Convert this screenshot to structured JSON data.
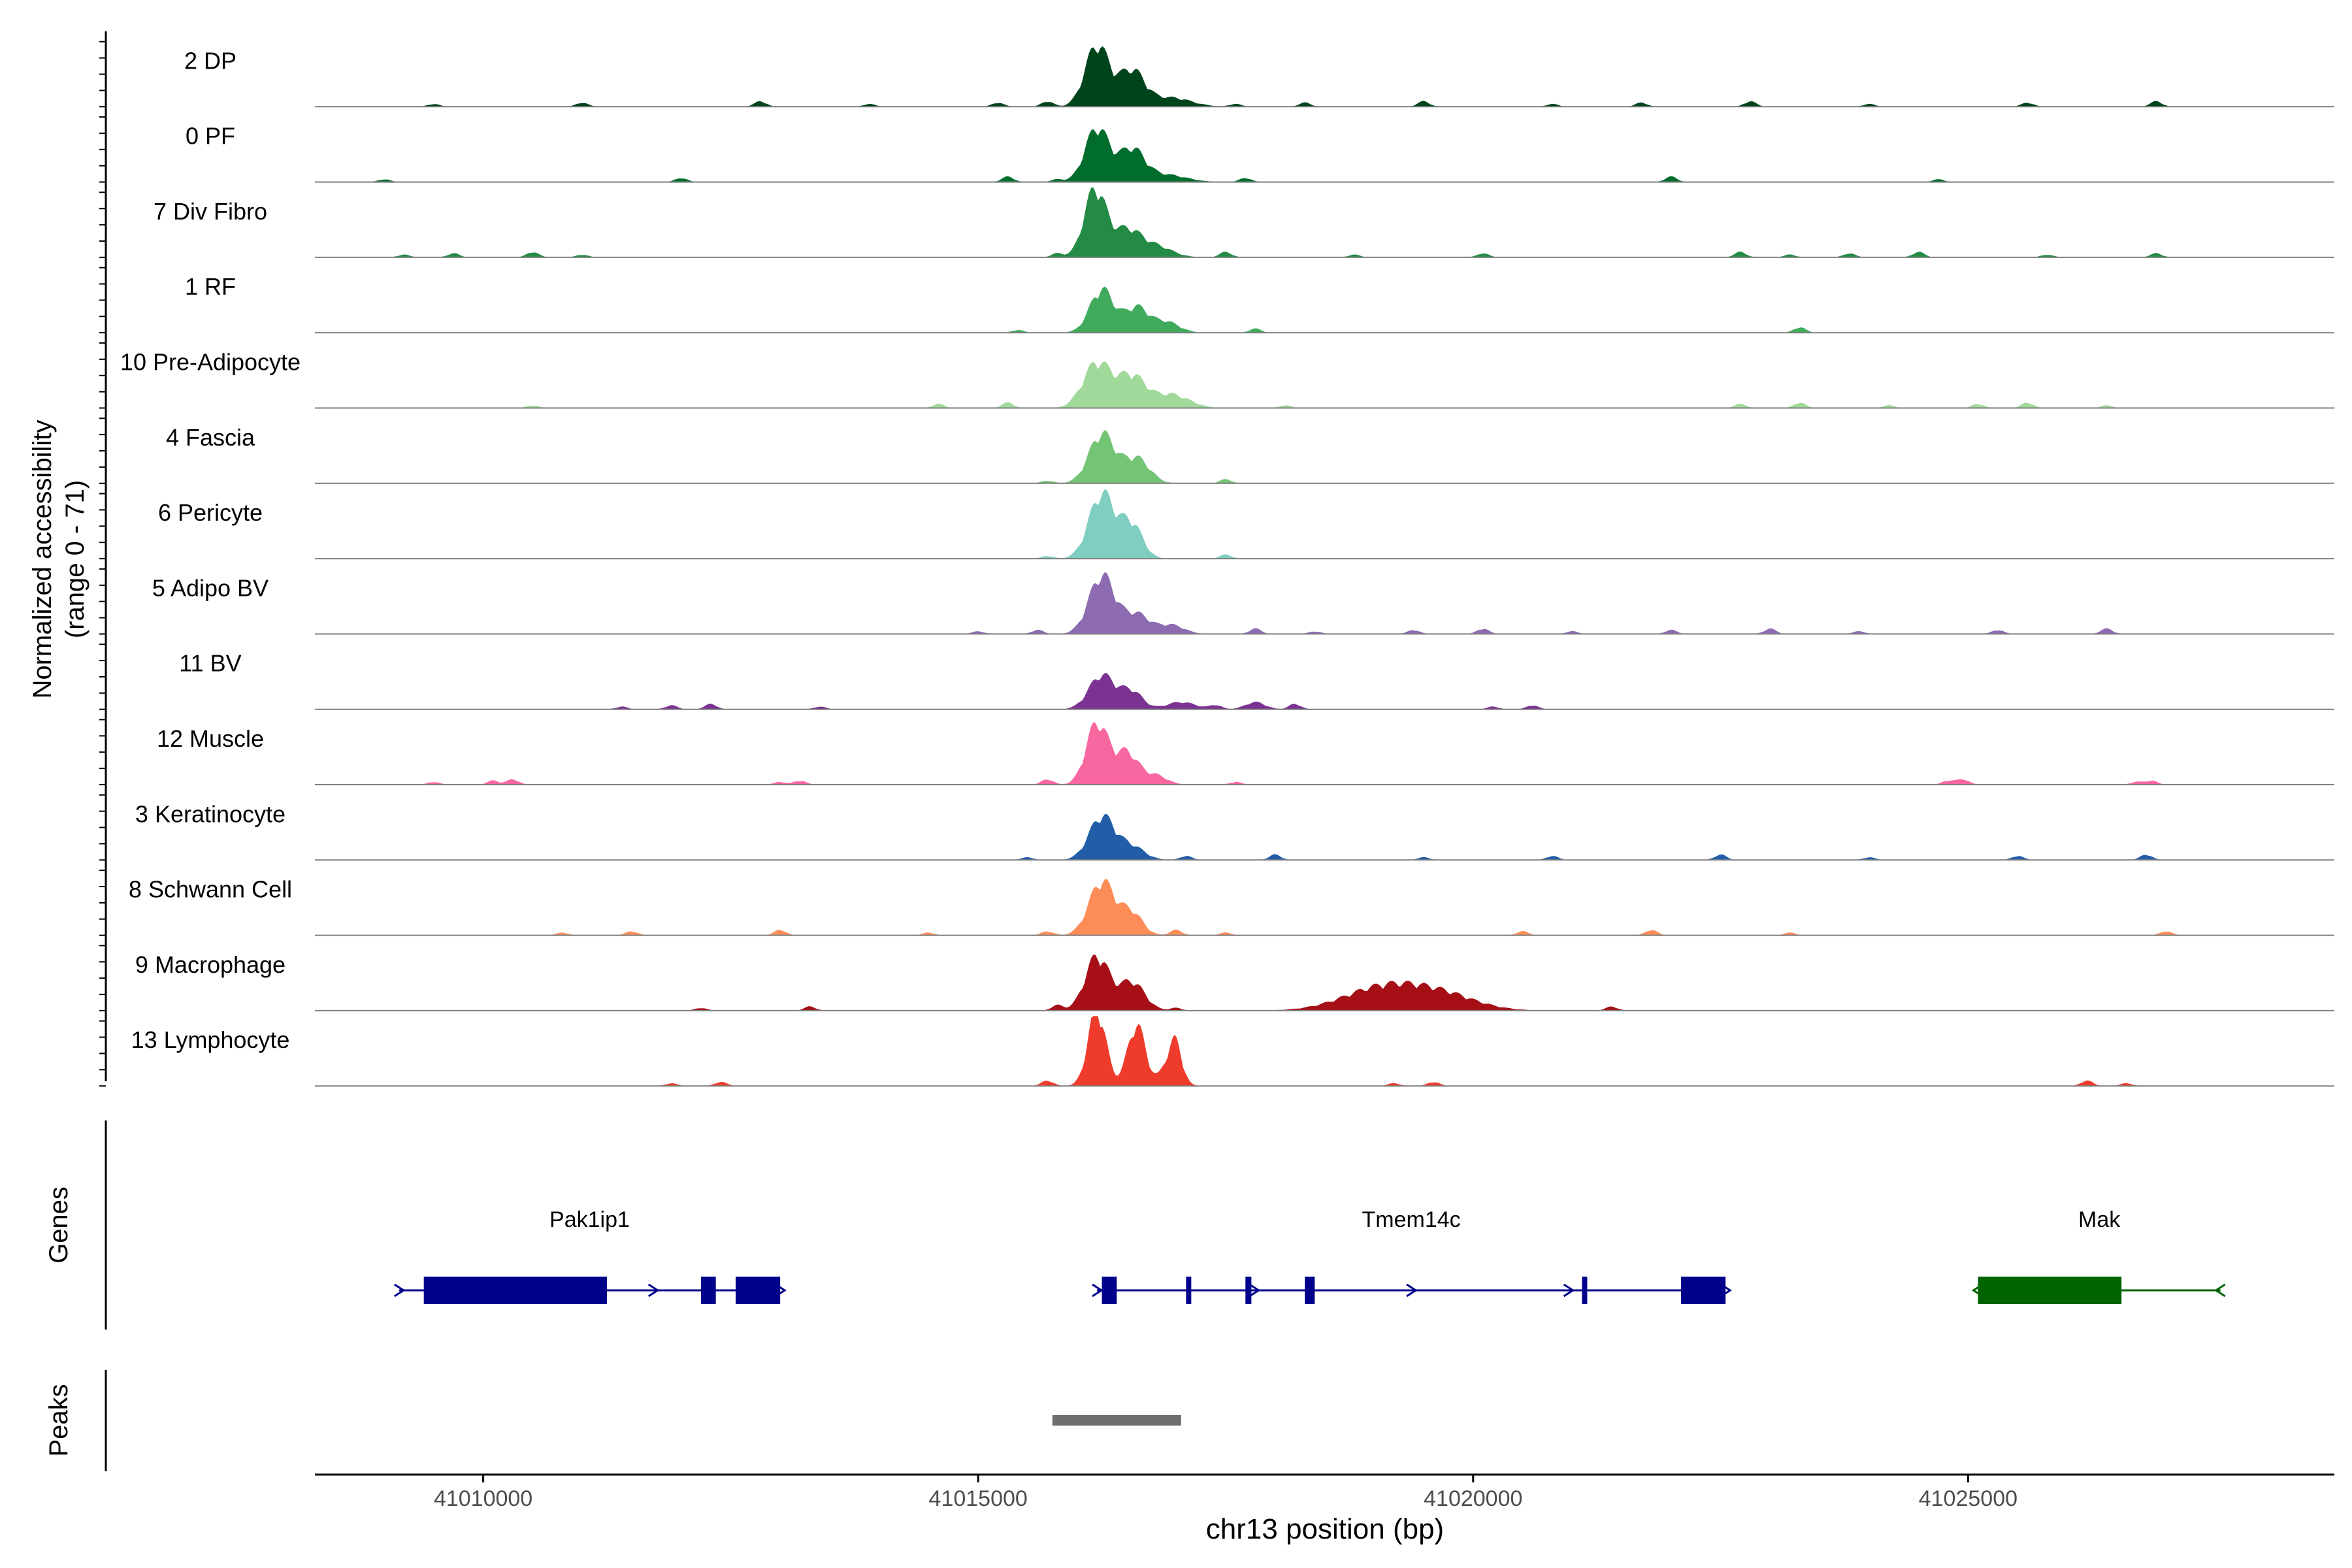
{
  "chart_data": {
    "type": "area",
    "title": "",
    "xlabel": "chr13 position (bp)",
    "ylabel": "Normalized accessibility",
    "ylabel_range": "(range 0 - 71)",
    "ylim": [
      0,
      71
    ],
    "xlim": [
      41008300,
      41028700
    ],
    "x_ticks": [
      41010000,
      41015000,
      41020000,
      41025000
    ],
    "x_tick_labels": [
      "41010000",
      "41015000",
      "41020000",
      "41025000"
    ],
    "tracks": [
      {
        "name": "2 DP",
        "color": "#00441B",
        "peaks": [
          [
            41016200,
            68,
            120
          ],
          [
            41016550,
            40,
            130
          ],
          [
            41016950,
            10,
            200
          ]
        ],
        "bumps": [
          41009500,
          41011000,
          41012800,
          41013900,
          41015200,
          41015700,
          41017600,
          41018300,
          41019500,
          41020800,
          41021700,
          41022800,
          41024000,
          41025600,
          41026900
        ]
      },
      {
        "name": "0 PF",
        "color": "#006D2C",
        "peaks": [
          [
            41016200,
            60,
            120
          ],
          [
            41016550,
            36,
            130
          ],
          [
            41016900,
            8,
            200
          ]
        ],
        "bumps": [
          41009000,
          41012000,
          41015300,
          41015800,
          41017700,
          41022000,
          41024700
        ]
      },
      {
        "name": "7 Div Fibro",
        "color": "#238B45",
        "peaks": [
          [
            41016180,
            75,
            110
          ],
          [
            41016500,
            30,
            140
          ],
          [
            41016800,
            12,
            160
          ]
        ],
        "bumps": [
          41009200,
          41009700,
          41010500,
          41011000,
          41015800,
          41017500,
          41018800,
          41020100,
          41022700,
          41023200,
          41023800,
          41024500,
          41025800,
          41026900
        ]
      },
      {
        "name": "1 RF",
        "color": "#41AB5D",
        "peaks": [
          [
            41016250,
            48,
            120
          ],
          [
            41016600,
            28,
            120
          ],
          [
            41016900,
            12,
            130
          ]
        ],
        "bumps": [
          41015400,
          41017800,
          41023300
        ]
      },
      {
        "name": "10 Pre-Adipocyte",
        "color": "#A1D99B",
        "peaks": [
          [
            41016200,
            50,
            140
          ],
          [
            41016550,
            35,
            140
          ],
          [
            41016950,
            15,
            180
          ]
        ],
        "bumps": [
          41010500,
          41014600,
          41015300,
          41018100,
          41022700,
          41023300,
          41024200,
          41025100,
          41025600,
          41026400
        ]
      },
      {
        "name": "4 Fascia",
        "color": "#74C476",
        "peaks": [
          [
            41016250,
            55,
            130
          ],
          [
            41016600,
            28,
            130
          ]
        ],
        "bumps": [
          41015700,
          41017500
        ]
      },
      {
        "name": "6 Pericyte",
        "color": "#80CDC1",
        "peaks": [
          [
            41016250,
            72,
            130
          ],
          [
            41016550,
            38,
            110
          ]
        ],
        "bumps": [
          41015700,
          41017500
        ]
      },
      {
        "name": "5 Adipo BV",
        "color": "#8C6BB1",
        "peaks": [
          [
            41016250,
            65,
            130
          ],
          [
            41016600,
            22,
            130
          ],
          [
            41016950,
            10,
            130
          ]
        ],
        "bumps": [
          41015000,
          41015600,
          41017800,
          41018400,
          41019400,
          41020100,
          41021000,
          41022000,
          41023000,
          41023900,
          41025300,
          41026400
        ]
      },
      {
        "name": "11 BV",
        "color": "#7A3391",
        "peaks": [
          [
            41016250,
            38,
            130
          ],
          [
            41016550,
            20,
            110
          ],
          [
            41017050,
            8,
            150
          ],
          [
            41017800,
            8,
            100
          ]
        ],
        "bumps": [
          41011400,
          41011900,
          41012300,
          41013400,
          41017400,
          41018200,
          41020200,
          41020600
        ]
      },
      {
        "name": "12 Muscle",
        "color": "#F768A1",
        "peaks": [
          [
            41016200,
            68,
            110
          ],
          [
            41016500,
            36,
            120
          ],
          [
            41016800,
            10,
            110
          ]
        ],
        "bumps": [
          41009500,
          41010100,
          41010300,
          41013000,
          41013200,
          41015700,
          41017600,
          41024800,
          41024950,
          41026700,
          41026850
        ]
      },
      {
        "name": "3 Keratinocyte",
        "color": "#225EA8",
        "peaks": [
          [
            41016250,
            48,
            130
          ],
          [
            41016550,
            15,
            130
          ]
        ],
        "bumps": [
          41015500,
          41017100,
          41018000,
          41019500,
          41020800,
          41022500,
          41024000,
          41025500,
          41026800
        ]
      },
      {
        "name": "8 Schwann Cell",
        "color": "#FC8D59",
        "peaks": [
          [
            41016250,
            60,
            130
          ],
          [
            41016550,
            25,
            110
          ]
        ],
        "bumps": [
          41010800,
          41011500,
          41013000,
          41014500,
          41015700,
          41017000,
          41017500,
          41020500,
          41021800,
          41023200,
          41027000
        ]
      },
      {
        "name": "9 Macrophage",
        "color": "#A50F15",
        "peaks": [
          [
            41016200,
            60,
            120
          ],
          [
            41016550,
            32,
            130
          ],
          [
            41019100,
            26,
            400
          ],
          [
            41019700,
            15,
            350
          ]
        ],
        "bumps": [
          41012200,
          41013300,
          41015800,
          41017000,
          41021400
        ]
      },
      {
        "name": "13 Lymphocyte",
        "color": "#EF3B2C",
        "peaks": [
          [
            41016200,
            85,
            90
          ],
          [
            41016600,
            68,
            90
          ],
          [
            41016950,
            30,
            90
          ],
          [
            41017000,
            25,
            60
          ]
        ],
        "bumps": [
          41011900,
          41012400,
          41015700,
          41019200,
          41019600,
          41026200,
          41026600
        ]
      }
    ],
    "genes": [
      {
        "name": "Pak1ip1",
        "strand": "+",
        "color": "#00008B",
        "start": 41009150,
        "end": 41013000,
        "exons": [
          [
            41009400,
            41011250
          ],
          [
            41012200,
            41012350
          ],
          [
            41012550,
            41013000
          ]
        ]
      },
      {
        "name": "Tmem14c",
        "strand": "+",
        "color": "#00008B",
        "start": 41016200,
        "end": 41022550,
        "exons": [
          [
            41016250,
            41016400
          ],
          [
            41017100,
            41017150
          ],
          [
            41017700,
            41017760
          ],
          [
            41018300,
            41018400
          ],
          [
            41021100,
            41021150
          ],
          [
            41022100,
            41022550
          ]
        ]
      },
      {
        "name": "Mak",
        "strand": "-",
        "color": "#006400",
        "start": 41025100,
        "end": 41027550,
        "exons": [
          [
            41025100,
            41026550
          ]
        ]
      }
    ],
    "peaks_track": [
      {
        "start": 41015750,
        "end": 41017050,
        "color": "#6E6E6E"
      }
    ],
    "panel_labels": {
      "genes": "Genes",
      "peaks": "Peaks"
    }
  }
}
